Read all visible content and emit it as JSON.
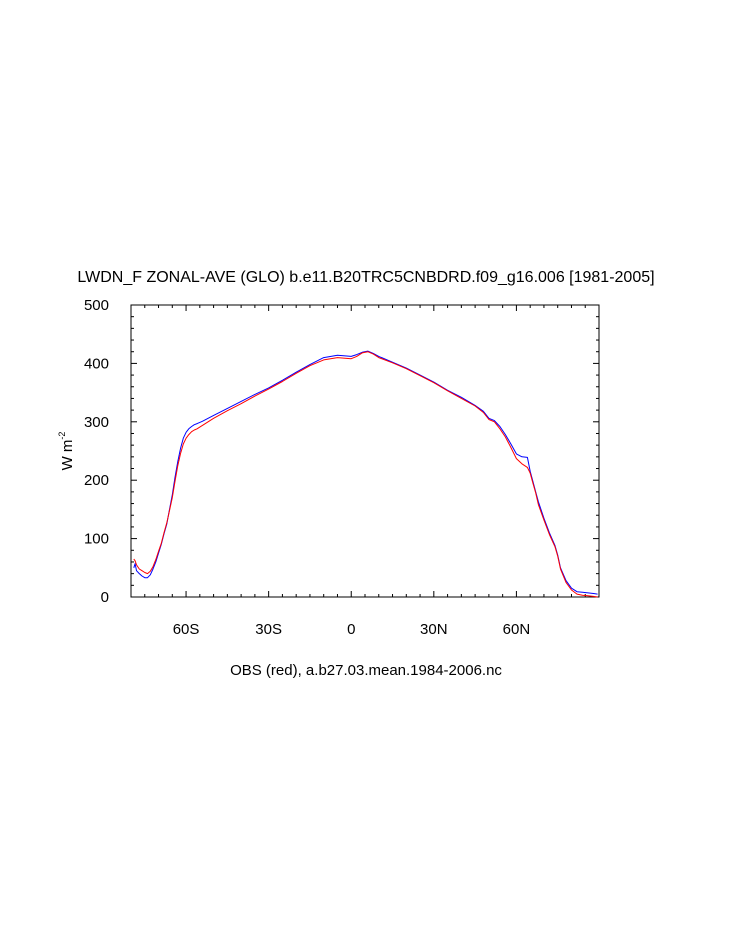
{
  "chart_data": {
    "type": "line",
    "title": "LWDN_F ZONAL-AVE (GLO) b.e11.B20TRC5CNBDRD.f09_g16.006 [1981-2005]",
    "ylabel": "W m",
    "ylabel_sup": "-2",
    "xlabel": "OBS (red), a.b27.03.mean.1984-2006.nc",
    "xlim": [
      -80,
      90
    ],
    "ylim": [
      0,
      500
    ],
    "x_ticks": [
      -60,
      -30,
      0,
      30,
      60
    ],
    "x_tick_labels": [
      "60S",
      "30S",
      "0",
      "30N",
      "60N"
    ],
    "y_ticks": [
      0,
      100,
      200,
      300,
      400,
      500
    ],
    "y_tick_labels": [
      "0",
      "100",
      "200",
      "300",
      "400",
      "500"
    ],
    "grid": false,
    "legend": "none",
    "series": [
      {
        "color": "#0000ff",
        "x": [
          -79,
          -78.5,
          -78,
          -77,
          -76,
          -75,
          -74,
          -73,
          -72,
          -71,
          -70,
          -69,
          -68,
          -67,
          -66,
          -65,
          -64,
          -63,
          -62,
          -61,
          -60,
          -59,
          -58,
          -57,
          -56,
          -55,
          -54,
          -52,
          -50,
          -45,
          -40,
          -35,
          -30,
          -25,
          -20,
          -15,
          -10,
          -5,
          0,
          2,
          4,
          6,
          8,
          10,
          15,
          20,
          25,
          30,
          35,
          40,
          45,
          48,
          50,
          52,
          54,
          56,
          58,
          60,
          62,
          64,
          65,
          66,
          67,
          68,
          70,
          72,
          74,
          75,
          76,
          78,
          80,
          82,
          84,
          86,
          88,
          89.5
        ],
        "y": [
          50,
          57,
          45,
          40,
          36,
          33,
          33,
          38,
          48,
          60,
          75,
          90,
          108,
          125,
          150,
          175,
          205,
          232,
          255,
          272,
          282,
          288,
          292,
          295,
          297,
          299,
          301,
          306,
          311,
          323,
          335,
          347,
          358,
          371,
          385,
          398,
          410,
          414,
          412,
          415,
          419,
          421,
          417,
          412,
          402,
          392,
          380,
          368,
          354,
          342,
          328,
          318,
          306,
          302,
          292,
          278,
          262,
          245,
          240,
          239,
          215,
          198,
          180,
          163,
          135,
          110,
          88,
          72,
          50,
          28,
          15,
          9,
          8,
          7,
          6,
          5
        ]
      },
      {
        "color": "#ff0000",
        "x": [
          -79,
          -78.5,
          -78,
          -77,
          -76,
          -75,
          -74,
          -73,
          -72,
          -71,
          -70,
          -69,
          -68,
          -67,
          -66,
          -65,
          -64,
          -63,
          -62,
          -61,
          -60,
          -59,
          -58,
          -57,
          -56,
          -55,
          -54,
          -52,
          -50,
          -45,
          -40,
          -35,
          -30,
          -25,
          -20,
          -15,
          -10,
          -5,
          0,
          2,
          4,
          6,
          8,
          10,
          15,
          20,
          25,
          30,
          35,
          40,
          45,
          48,
          50,
          52,
          54,
          56,
          58,
          60,
          62,
          64,
          65,
          66,
          67,
          68,
          70,
          72,
          74,
          75,
          76,
          78,
          80,
          82,
          84,
          86,
          88,
          89.5
        ],
        "y": [
          65,
          62,
          55,
          48,
          45,
          42,
          40,
          44,
          52,
          64,
          78,
          92,
          110,
          127,
          148,
          170,
          198,
          225,
          246,
          262,
          272,
          278,
          283,
          286,
          288,
          291,
          294,
          300,
          306,
          319,
          331,
          344,
          356,
          369,
          383,
          396,
          406,
          410,
          408,
          412,
          418,
          420,
          416,
          410,
          401,
          391,
          379,
          367,
          353,
          340,
          327,
          316,
          304,
          300,
          288,
          274,
          256,
          237,
          228,
          222,
          212,
          195,
          178,
          158,
          132,
          107,
          86,
          70,
          48,
          25,
          12,
          5,
          3,
          2,
          1,
          0
        ]
      }
    ]
  }
}
